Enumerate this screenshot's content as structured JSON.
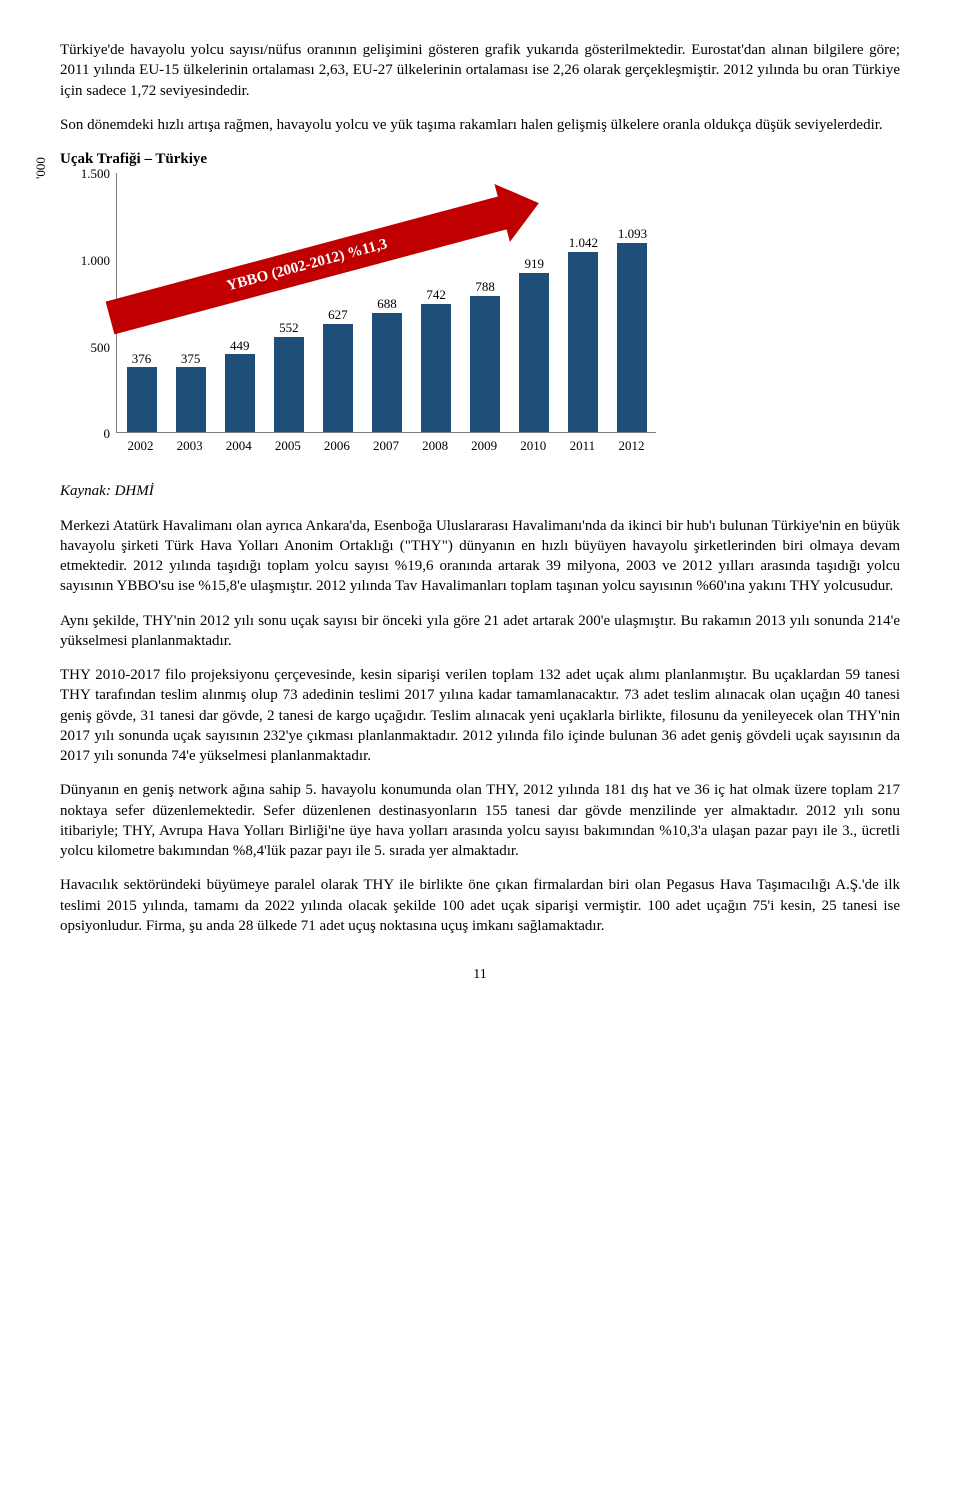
{
  "para1": "Türkiye'de havayolu yolcu sayısı/nüfus oranının gelişimini gösteren grafik yukarıda gösterilmektedir. Eurostat'dan alınan bilgilere göre; 2011 yılında EU-15 ülkelerinin ortalaması 2,63, EU-27 ülkelerinin ortalaması ise 2,26 olarak gerçekleşmiştir. 2012 yılında bu oran Türkiye için sadece 1,72 seviyesindedir.",
  "para2": "Son dönemdeki hızlı artışa rağmen, havayolu yolcu ve yük taşıma rakamları halen gelişmiş ülkelere oranla oldukça düşük seviyelerdedir.",
  "chart": {
    "title": "Uçak Trafiği – Türkiye",
    "y_unit": "'000",
    "y_ticks": [
      0,
      500,
      1000,
      1500
    ],
    "y_tick_labels": [
      "0",
      "500",
      "1.000",
      "1.500"
    ],
    "y_max": 1500,
    "categories": [
      "2002",
      "2003",
      "2004",
      "2005",
      "2006",
      "2007",
      "2008",
      "2009",
      "2010",
      "2011",
      "2012"
    ],
    "values": [
      376,
      375,
      449,
      552,
      627,
      688,
      742,
      788,
      919,
      1042,
      1093
    ],
    "value_labels": [
      "376",
      "375",
      "449",
      "552",
      "627",
      "688",
      "742",
      "788",
      "919",
      "1.042",
      "1.093"
    ],
    "bar_color": "#1f4e79",
    "arrow_text": "YBBO (2002-2012) %11,3",
    "arrow_color": "#c00000"
  },
  "source": "Kaynak: DHMİ",
  "para3": "Merkezi Atatürk Havalimanı olan ayrıca Ankara'da, Esenboğa Uluslararası Havalimanı'nda da ikinci bir hub'ı bulunan  Türkiye'nin en büyük havayolu şirketi Türk Hava Yolları Anonim Ortaklığı (\"THY\") dünyanın en hızlı büyüyen havayolu şirketlerinden biri olmaya devam etmektedir. 2012 yılında taşıdığı toplam yolcu sayısı %19,6 oranında artarak 39 milyona, 2003 ve 2012 yılları arasında taşıdığı yolcu sayısının YBBO'su ise %15,8'e ulaşmıştır. 2012 yılında Tav Havalimanları toplam taşınan yolcu sayısının %60'ına yakını THY yolcusudur.",
  "para4": "Aynı şekilde, THY'nin 2012 yılı sonu uçak sayısı bir önceki yıla göre 21 adet artarak 200'e ulaşmıştır. Bu rakamın 2013 yılı sonunda 214'e yükselmesi planlanmaktadır.",
  "para5": "THY 2010-2017 filo projeksiyonu çerçevesinde, kesin siparişi verilen toplam 132 adet uçak alımı planlanmıştır. Bu uçaklardan 59 tanesi THY tarafından teslim alınmış olup 73 adedinin teslimi 2017 yılına kadar tamamlanacaktır. 73 adet teslim alınacak olan uçağın 40 tanesi geniş gövde, 31 tanesi dar gövde, 2 tanesi de kargo uçağıdır. Teslim alınacak yeni uçaklarla birlikte, filosunu da yenileyecek olan THY'nin 2017 yılı sonunda uçak sayısının 232'ye çıkması planlanmaktadır. 2012 yılında filo içinde bulunan 36 adet geniş gövdeli uçak sayısının da 2017 yılı sonunda 74'e yükselmesi planlanmaktadır.",
  "para6": "Dünyanın en geniş network ağına sahip 5. havayolu konumunda olan THY, 2012 yılında 181 dış hat ve 36 iç hat olmak üzere toplam 217 noktaya sefer düzenlemektedir. Sefer düzenlenen destinasyonların 155 tanesi dar gövde menzilinde yer almaktadır. 2012 yılı sonu itibariyle; THY, Avrupa Hava Yolları Birliği'ne üye hava yolları arasında yolcu sayısı bakımından %10,3'a ulaşan pazar payı ile 3., ücretli yolcu kilometre bakımından %8,4'lük pazar payı ile 5. sırada yer almaktadır.",
  "para7": "Havacılık sektöründeki büyümeye paralel olarak THY ile birlikte öne çıkan firmalardan biri olan Pegasus Hava Taşımacılığı A.Ş.'de ilk teslimi 2015 yılında, tamamı da 2022 yılında olacak şekilde 100 adet uçak siparişi vermiştir. 100 adet uçağın 75'i kesin, 25 tanesi ise opsiyonludur. Firma, şu anda 28 ülkede 71 adet uçuş noktasına uçuş imkanı sağlamaktadır.",
  "page_number": "11"
}
